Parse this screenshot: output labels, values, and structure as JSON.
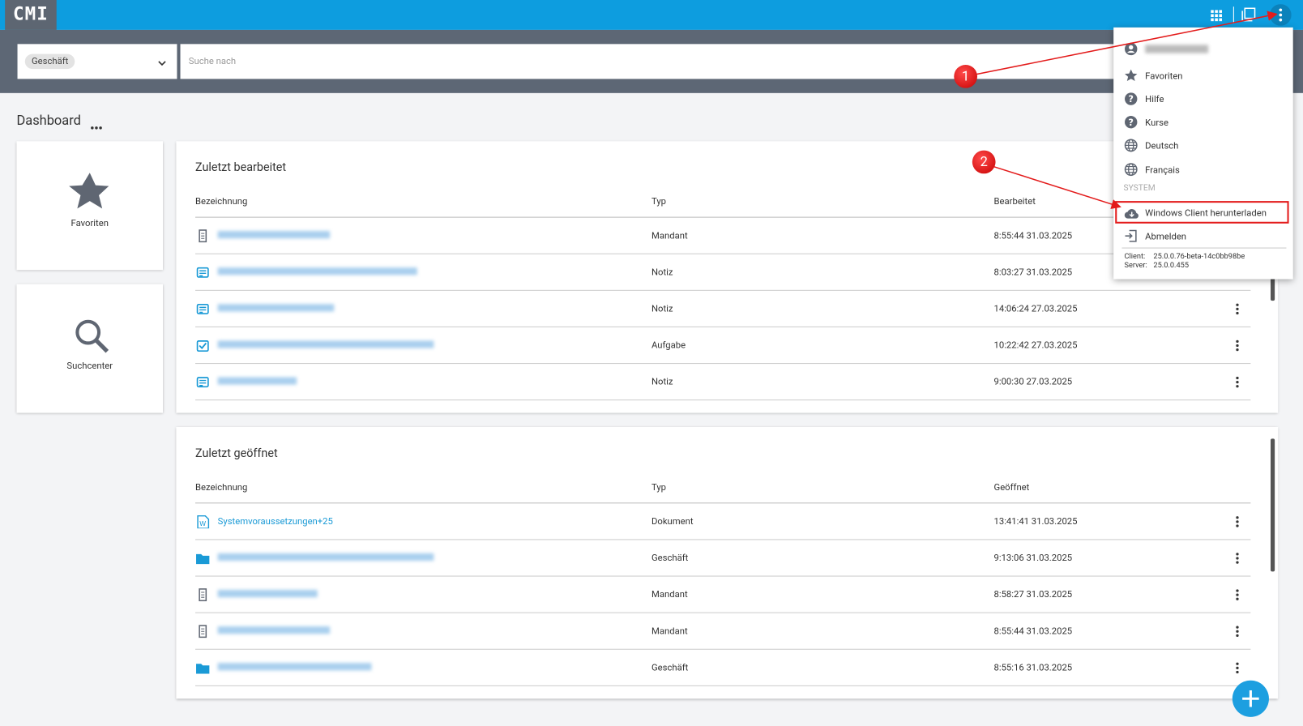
{
  "header": {
    "logo": "CMI"
  },
  "search": {
    "scope": "Geschäft",
    "placeholder": "Suche nach"
  },
  "dashboard": {
    "title": "Dashboard"
  },
  "tiles": [
    "Favoriten",
    "Suchcenter"
  ],
  "panels": [
    {
      "title": "Zuletzt bearbeitet",
      "columns": [
        "Bezeichnung",
        "Typ",
        "Bearbeitet"
      ],
      "rows": [
        {
          "type": "Mandant",
          "time": "8:55:44 31.03.2025"
        },
        {
          "type": "Notiz",
          "time": "8:03:27 31.03.2025"
        },
        {
          "type": "Notiz",
          "time": "14:06:24 27.03.2025"
        },
        {
          "type": "Aufgabe",
          "time": "10:22:42 27.03.2025"
        },
        {
          "type": "Notiz",
          "time": "9:00:30 27.03.2025"
        }
      ]
    },
    {
      "title": "Zuletzt geöffnet",
      "columns": [
        "Bezeichnung",
        "Typ",
        "Geöffnet"
      ],
      "rows": [
        {
          "name": "Systemvoraussetzungen+25",
          "type": "Dokument",
          "time": "13:41:41 31.03.2025"
        },
        {
          "type": "Geschäft",
          "time": "9:13:06 31.03.2025"
        },
        {
          "type": "Mandant",
          "time": "8:58:27 31.03.2025"
        },
        {
          "type": "Mandant",
          "time": "8:55:44 31.03.2025"
        },
        {
          "type": "Geschäft",
          "time": "8:55:16 31.03.2025"
        }
      ]
    }
  ],
  "menu": {
    "items": [
      "Favoriten",
      "Hilfe",
      "Kurse",
      "Deutsch",
      "Français"
    ],
    "section": "SYSTEM",
    "download": "Windows Client herunterladen",
    "logout": "Abmelden",
    "client_label": "Client:",
    "client": "25.0.0.76-beta-14c0bb98be",
    "server_label": "Server:",
    "server": "25.0.0.455"
  },
  "annotations": [
    "1",
    "2"
  ]
}
